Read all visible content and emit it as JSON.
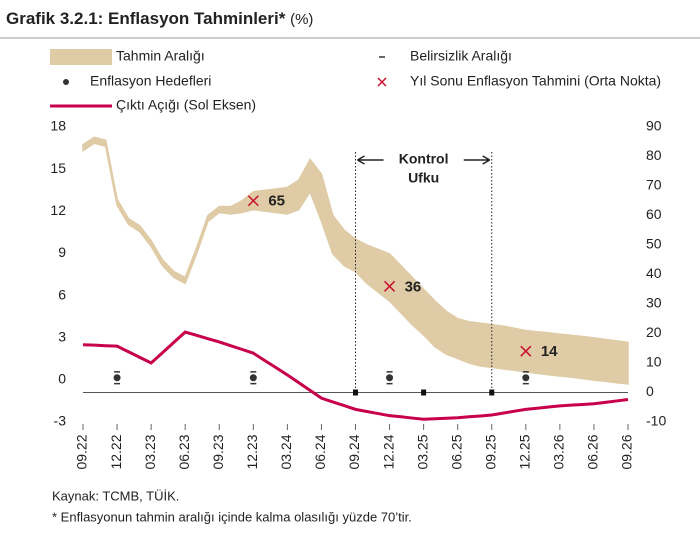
{
  "chart_data": {
    "type": "band-line",
    "title": "Grafik 3.2.1: Enflasyon Tahminleri*",
    "unit": "(%)",
    "categories": [
      "09.22",
      null,
      null,
      "12.22",
      null,
      null,
      "03.23",
      null,
      null,
      "06.23",
      null,
      null,
      "09.23",
      null,
      null,
      "12.23",
      null,
      null,
      "03.24",
      null,
      null,
      "06.24",
      null,
      null,
      "09.24",
      null,
      null,
      "12.24",
      null,
      null,
      "03.25",
      null,
      null,
      "06.25",
      null,
      null,
      "09.25",
      null,
      null,
      "12.25",
      null,
      null,
      "03.26",
      null,
      null,
      "06.26",
      null,
      null,
      "09.26"
    ],
    "ylim": [
      -3,
      18
    ],
    "yticks": [
      -3,
      0,
      3,
      6,
      9,
      12,
      15,
      18
    ],
    "y2lim": [
      -10,
      90
    ],
    "y2ticks": [
      -10,
      0,
      10,
      20,
      30,
      40,
      50,
      60,
      70,
      80,
      90
    ],
    "series": [
      {
        "name": "Tahmin Aralığı",
        "type": "band",
        "axis": "y2",
        "color": "#dfcba6",
        "upper": [
          84,
          86.5,
          85.5,
          65.5,
          59,
          56.5,
          51.5,
          45,
          41,
          39,
          49,
          60,
          63,
          63,
          65,
          68,
          68.5,
          69,
          69.5,
          72,
          79,
          74,
          60,
          55,
          52,
          50,
          48.5,
          47,
          43,
          39,
          35,
          31,
          27.5,
          25,
          24,
          23.5,
          23,
          22.5,
          21.8,
          21,
          20.6,
          20.2,
          19.8,
          19.4,
          19,
          18.5,
          18,
          17.5,
          17
        ],
        "lower": [
          82,
          84.5,
          83.5,
          63.5,
          57,
          54.5,
          49.5,
          43,
          39,
          37,
          47,
          58,
          61,
          60.5,
          61,
          62,
          61.5,
          61,
          60.5,
          62,
          68,
          58,
          47,
          43,
          41,
          37,
          34,
          31,
          27,
          23,
          19.5,
          15.5,
          13,
          11.5,
          10,
          9,
          8.5,
          8,
          7.5,
          7,
          6.5,
          6,
          5.6,
          5.2,
          4.7,
          4.2,
          3.8,
          3.3,
          2.9
        ]
      },
      {
        "name": "Enflasyon Hedefleri",
        "type": "point",
        "axis": "y2",
        "color": "#333333",
        "error_name": "Belirsizlik Aralığı",
        "values": [
          null,
          null,
          null,
          5,
          null,
          null,
          null,
          null,
          null,
          null,
          null,
          null,
          null,
          null,
          null,
          5,
          null,
          null,
          null,
          null,
          null,
          null,
          null,
          null,
          null,
          null,
          null,
          5,
          null,
          null,
          null,
          null,
          null,
          null,
          null,
          null,
          null,
          null,
          null,
          5,
          null,
          null,
          null,
          null,
          null,
          null,
          null,
          null,
          null
        ],
        "errors": [
          null,
          null,
          null,
          2,
          null,
          null,
          null,
          null,
          null,
          null,
          null,
          null,
          null,
          null,
          null,
          2,
          null,
          null,
          null,
          null,
          null,
          null,
          null,
          null,
          null,
          null,
          null,
          2,
          null,
          null,
          null,
          null,
          null,
          null,
          null,
          null,
          null,
          null,
          null,
          2,
          null,
          null,
          null,
          null,
          null,
          null,
          null,
          null,
          null
        ]
      },
      {
        "name": "Çıktı Açığı (Sol Eksen)",
        "type": "line",
        "color": "#c8004b",
        "values": [
          2.5,
          2.47,
          2.43,
          2.4,
          2.0,
          1.6,
          1.2,
          1.93,
          2.67,
          3.4,
          3.17,
          2.93,
          2.7,
          2.43,
          2.17,
          1.9,
          1.38,
          0.87,
          0.35,
          -0.2,
          -0.75,
          -1.3,
          -1.57,
          -1.83,
          -2.1,
          -2.25,
          -2.4,
          -2.55,
          -2.63,
          -2.72,
          -2.8,
          -2.77,
          -2.73,
          -2.7,
          -2.63,
          -2.57,
          -2.5,
          -2.37,
          -2.23,
          -2.1,
          -2.02,
          -1.93,
          -1.85,
          -1.8,
          -1.75,
          -1.7,
          -1.6,
          -1.5,
          -1.4
        ]
      },
      {
        "name": "Yıl Sonu Enflasyon Tahmini (Orta Nokta)",
        "type": "cross",
        "axis": "y2",
        "color": "#c8102e",
        "values": [
          null,
          null,
          null,
          null,
          null,
          null,
          null,
          null,
          null,
          null,
          null,
          null,
          null,
          null,
          null,
          65,
          null,
          null,
          null,
          null,
          null,
          null,
          null,
          null,
          null,
          null,
          null,
          36,
          null,
          null,
          null,
          null,
          null,
          null,
          null,
          null,
          null,
          null,
          null,
          14,
          null,
          null,
          null,
          null,
          null,
          null,
          null,
          null,
          null
        ]
      }
    ],
    "control_horizon": {
      "label": [
        "Kontrol",
        "Ufku"
      ],
      "start": "09.24",
      "end": "09.25",
      "markers": [
        "09.24",
        "03.25",
        "09.25"
      ]
    },
    "notes": [
      "Kaynak: TCMB, TÜİK.",
      "* Enflasyonun tahmin aralığı içinde kalma olasılığı yüzde 70’tir."
    ]
  }
}
